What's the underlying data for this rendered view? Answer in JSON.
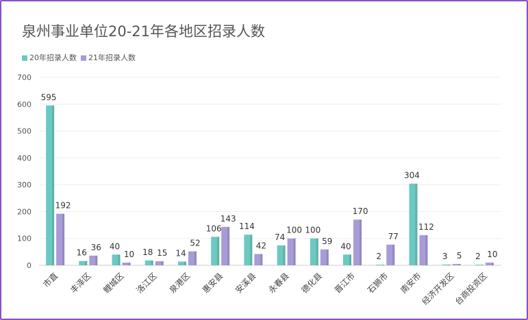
{
  "chart_data": {
    "type": "bar",
    "title": "泉州事业单位20-21年各地区招录人数",
    "categories": [
      "市直",
      "丰泽区",
      "鲤城区",
      "洛江区",
      "泉港区",
      "惠安县",
      "安溪县",
      "永春县",
      "德化县",
      "晋江市",
      "石狮市",
      "南安市",
      "经济开发区",
      "台商投资区"
    ],
    "series": [
      {
        "name": "20年招录人数",
        "color": "#6cc9c1",
        "values": [
          595,
          16,
          40,
          18,
          14,
          106,
          114,
          74,
          100,
          40,
          2,
          304,
          3,
          2
        ]
      },
      {
        "name": "21年招录人数",
        "color": "#a89bd8",
        "values": [
          192,
          36,
          10,
          15,
          52,
          143,
          42,
          100,
          59,
          170,
          77,
          112,
          5,
          10
        ]
      }
    ],
    "ylim": [
      0,
      700
    ],
    "yticks": [
      0,
      100,
      200,
      300,
      400,
      500,
      600,
      700
    ],
    "grid": true,
    "legend_position": "top-left",
    "xlabel": "",
    "ylabel": ""
  }
}
